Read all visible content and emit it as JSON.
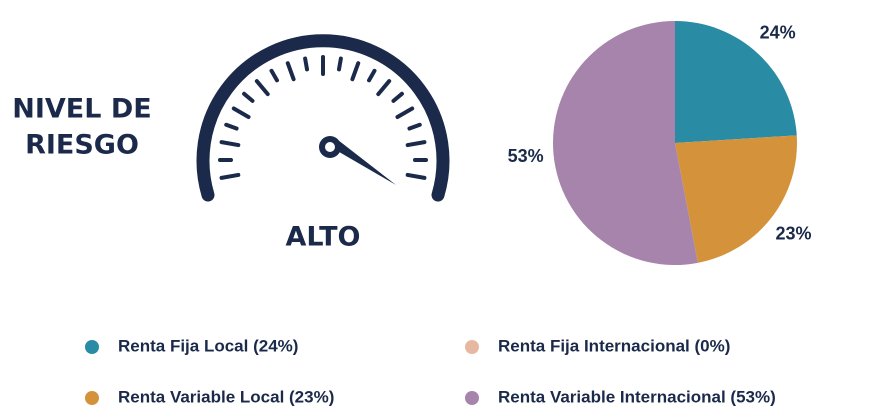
{
  "gauge": {
    "title_lines": [
      "NIVEL DE",
      "RIESGO"
    ],
    "level": "ALTO"
  },
  "chart_data": {
    "type": "pie",
    "categories": [
      "Renta Fija Local (24%)",
      "Renta Fija Internacional (0%)",
      "Renta Variable Local (23%)",
      "Renta Variable Internacional (53%)"
    ],
    "values": [
      24,
      0,
      23,
      53
    ],
    "value_labels": [
      "24%",
      null,
      "23%",
      "53%"
    ],
    "colors": [
      "#2a8ba5",
      "#e6b8a2",
      "#d4933a",
      "#a784ab"
    ]
  }
}
